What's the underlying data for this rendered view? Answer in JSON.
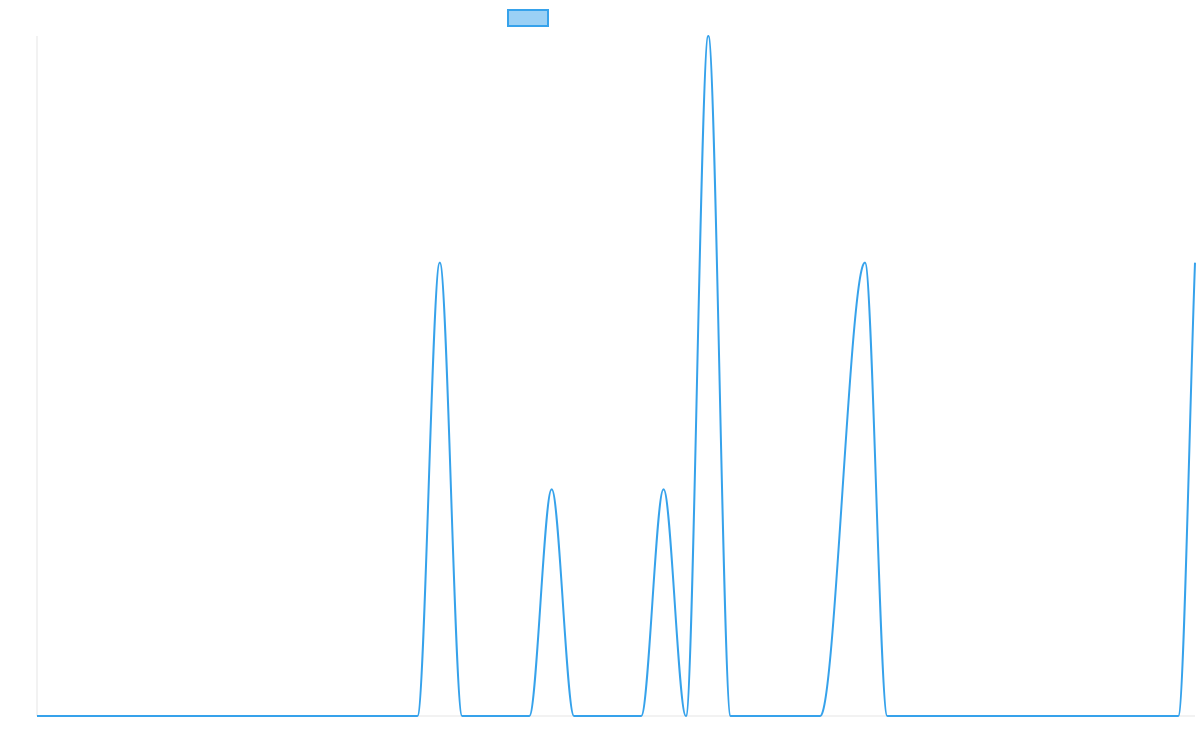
{
  "chart_data": {
    "type": "line",
    "title": "",
    "xlabel": "",
    "ylabel": "",
    "x": [
      0,
      17,
      18,
      19,
      20,
      22,
      23,
      24,
      25,
      27,
      28,
      29,
      30,
      31,
      32,
      33,
      34,
      35,
      37,
      38,
      39,
      40,
      50,
      51,
      51.75
    ],
    "ylim": [
      0,
      3
    ],
    "xlim": [
      0,
      51.75
    ],
    "grid": false,
    "legend": "top-center",
    "series": [
      {
        "name": "",
        "values": [
          0,
          0,
          2,
          0,
          0,
          0,
          1,
          0,
          0,
          0,
          1,
          0,
          3,
          0,
          0,
          0,
          0,
          0,
          2,
          0,
          0,
          0,
          0,
          0,
          2
        ],
        "color": "#36A2EB",
        "fill_color": "#9AD0F5"
      }
    ]
  }
}
